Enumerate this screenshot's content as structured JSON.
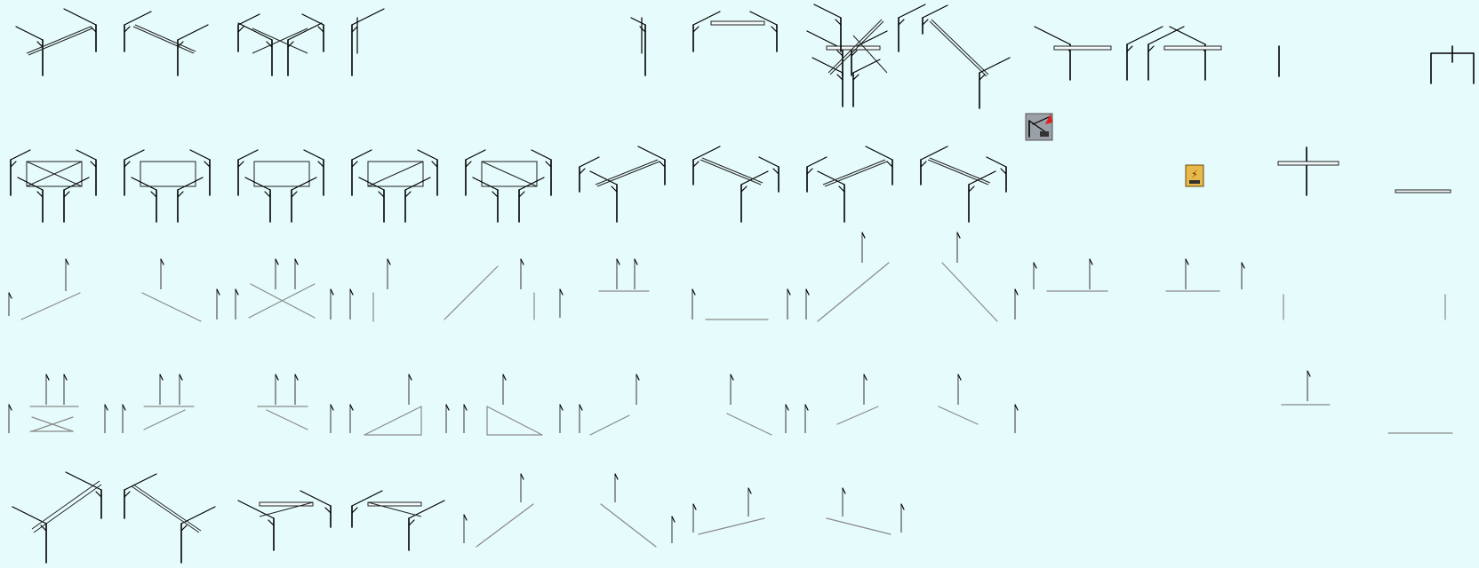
{
  "sheet": {
    "background": "#e6fbfb",
    "kind": "catenary-sprite-sheet",
    "rows": [
      {
        "name": "single-span-portals",
        "count": 13
      },
      {
        "name": "double-track-portals",
        "count": 12
      },
      {
        "name": "shadow-layer-a",
        "count": 13
      },
      {
        "name": "shadow-layer-b",
        "count": 12
      },
      {
        "name": "diagonal-portals",
        "count": 8
      }
    ]
  },
  "icons": [
    {
      "name": "catenary-tool-icon",
      "bg": "#9aa0a6",
      "accent": "#e02020"
    },
    {
      "name": "electric-depot-icon",
      "bg": "#e8b84a",
      "symbol": "⚡"
    }
  ]
}
